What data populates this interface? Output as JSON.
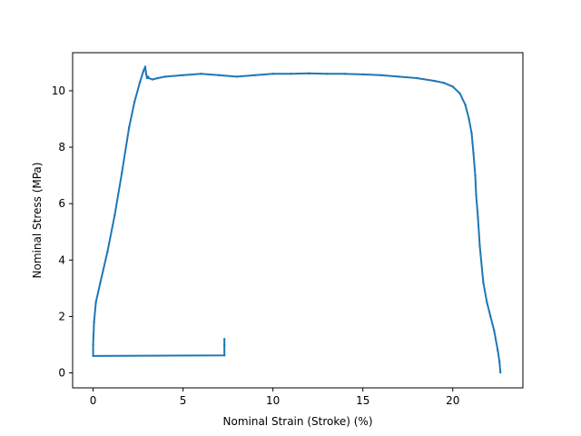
{
  "chart_data": {
    "type": "line",
    "title": "",
    "xlabel": "Nominal Strain (Stroke) (%)",
    "ylabel": "Nominal Stress (MPa)",
    "xlim": [
      -1.14,
      23.9
    ],
    "ylim": [
      -0.53,
      11.35
    ],
    "xticks": [
      0,
      5,
      10,
      15,
      20
    ],
    "yticks": [
      0,
      2,
      4,
      6,
      8,
      10
    ],
    "grid": false,
    "legend": "none",
    "line_color": "#1f77b4",
    "series": [
      {
        "x": [
          7.3,
          7.3,
          7.3,
          0.0,
          0.0,
          0.05,
          0.15,
          0.4,
          0.8,
          1.2,
          1.6,
          2.0,
          2.3,
          2.6,
          2.8,
          2.9,
          2.95,
          3.0,
          3.05,
          3.1,
          3.3,
          3.6,
          4.0,
          5.0,
          6.0,
          7.0,
          8.0,
          9.0,
          10.0,
          11.0,
          12.0,
          13.0,
          14.0,
          15.0,
          16.0,
          17.0,
          18.0,
          19.0,
          19.5,
          20.0,
          20.4,
          20.7,
          20.9,
          21.05,
          21.15,
          21.25,
          21.3,
          21.4,
          21.5,
          21.7,
          21.9,
          22.1,
          22.3,
          22.5,
          22.6,
          22.65
        ],
        "y": [
          1.2,
          1.0,
          0.62,
          0.6,
          1.0,
          1.8,
          2.5,
          3.2,
          4.3,
          5.6,
          7.1,
          8.7,
          9.6,
          10.3,
          10.7,
          10.85,
          10.6,
          10.45,
          10.5,
          10.45,
          10.4,
          10.45,
          10.5,
          10.55,
          10.6,
          10.55,
          10.5,
          10.55,
          10.6,
          10.6,
          10.62,
          10.6,
          10.6,
          10.58,
          10.55,
          10.5,
          10.45,
          10.35,
          10.28,
          10.15,
          9.9,
          9.5,
          9.0,
          8.5,
          7.8,
          7.0,
          6.3,
          5.5,
          4.5,
          3.2,
          2.5,
          2.0,
          1.5,
          0.8,
          0.4,
          0.02
        ]
      }
    ]
  }
}
